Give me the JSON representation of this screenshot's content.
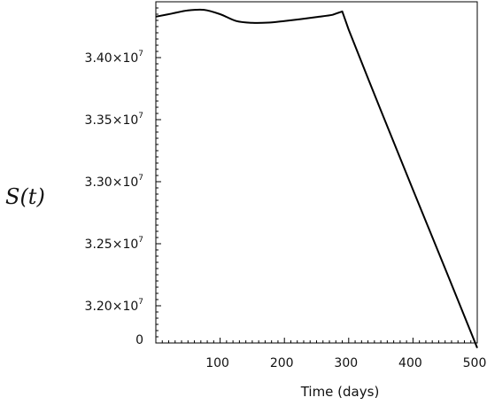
{
  "chart_data": {
    "type": "line",
    "xlabel": "Time (days)",
    "ylabel": "S(t)",
    "xlim": [
      0,
      500
    ],
    "ylim": [
      31700000,
      34450000
    ],
    "x_ticks": [
      {
        "value": 100,
        "label": "100"
      },
      {
        "value": 200,
        "label": "200"
      },
      {
        "value": 300,
        "label": "300"
      },
      {
        "value": 400,
        "label": "400"
      },
      {
        "value": 500,
        "label": "500"
      }
    ],
    "y_ticks": [
      {
        "value": 34000000,
        "mantissa": "3.40",
        "exp": "7"
      },
      {
        "value": 33500000,
        "mantissa": "3.35",
        "exp": "7"
      },
      {
        "value": 33000000,
        "mantissa": "3.30",
        "exp": "7"
      },
      {
        "value": 32500000,
        "mantissa": "3.25",
        "exp": "7"
      },
      {
        "value": 32000000,
        "mantissa": "3.20",
        "exp": "7"
      },
      {
        "value": 31730000,
        "mantissa": "0",
        "exp": ""
      }
    ],
    "y_times_sign": "×10",
    "series": [
      {
        "color": "#000000",
        "x": [
          0,
          25,
          50,
          75,
          100,
          125,
          150,
          175,
          200,
          225,
          250,
          275,
          290,
          300,
          350,
          400,
          450,
          500
        ],
        "y": [
          34330000,
          34355000,
          34380000,
          34385000,
          34350000,
          34295000,
          34280000,
          34282000,
          34295000,
          34310000,
          34327000,
          34345000,
          34372000,
          34225000,
          33575000,
          32935000,
          32300000,
          31660000
        ]
      }
    ],
    "grid": false,
    "frame": "box"
  }
}
